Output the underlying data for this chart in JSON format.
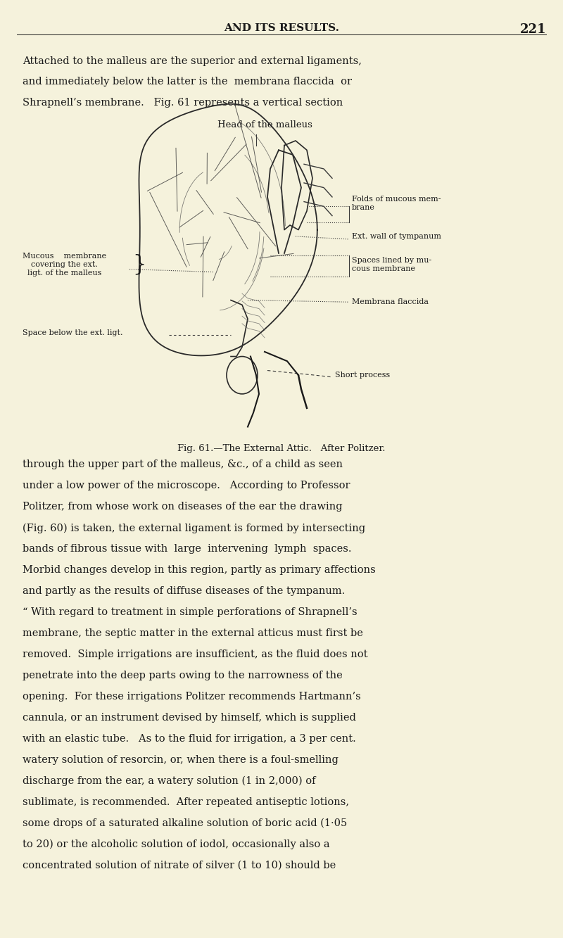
{
  "bg_color": "#f5f2dc",
  "page_width": 8.0,
  "page_height": 13.33,
  "dpi": 100,
  "header_text": "AND ITS RESULTS.",
  "header_page_num": "221",
  "fig_label_head": "Head of the malleus",
  "fig_label_folds": "Folds of mucous mem-\nbrane",
  "fig_label_ext_wall": "Ext. wall of tympanum",
  "fig_label_spaces": "Spaces lined by mu-\ncous membrane",
  "fig_label_membrana": "Membrana flaccida",
  "fig_label_mucous": "Mucous    membrane\ncovering the ext.\nligt. of the malleus",
  "fig_label_space_below": "Space below the ext. ligt.",
  "fig_label_short": "Short process",
  "text_color": "#1a1a1a"
}
